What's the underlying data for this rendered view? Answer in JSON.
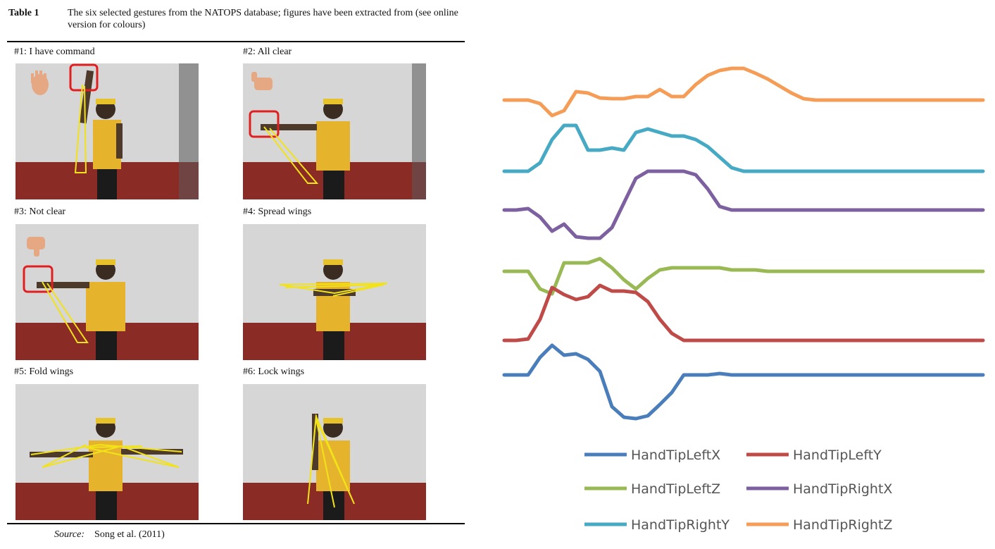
{
  "caption": {
    "label": "Table 1",
    "text": "The six selected gestures from the NATOPS database; figures have been extracted from (see online version for colours)"
  },
  "panels": [
    {
      "label": "#1: I have command",
      "gesture": "i-have-command"
    },
    {
      "label": "#2: All clear",
      "gesture": "all-clear"
    },
    {
      "label": "#3: Not clear",
      "gesture": "not-clear"
    },
    {
      "label": "#4: Spread wings",
      "gesture": "spread-wings"
    },
    {
      "label": "#5: Fold wings",
      "gesture": "fold-wings"
    },
    {
      "label": "#6: Lock wings",
      "gesture": "lock-wings"
    }
  ],
  "source": {
    "label": "Source:",
    "text": "Song et al. (2011)"
  },
  "colors": {
    "HandTipLeftX": "#4a7ebb",
    "HandTipLeftY": "#be4b48",
    "HandTipLeftZ": "#98b954",
    "HandTipRightX": "#7d60a0",
    "HandTipRightY": "#46aac5",
    "HandTipRightZ": "#f59d56"
  },
  "chart_data": {
    "type": "line",
    "title": "",
    "xlabel": "",
    "ylabel": "",
    "grid": false,
    "axes_visible": false,
    "legend_position": "bottom",
    "x": [
      0,
      1,
      2,
      3,
      4,
      5,
      6,
      7,
      8,
      9,
      10,
      11,
      12,
      13,
      14,
      15,
      16,
      17,
      18,
      19,
      20,
      21,
      22,
      23,
      24,
      25,
      26,
      27,
      28,
      29,
      30,
      31,
      32,
      33,
      34,
      35,
      36,
      37,
      38,
      39,
      40
    ],
    "series": [
      {
        "name": "HandTipRightZ",
        "color": "#f59d56",
        "values": [
          0,
          0,
          0,
          -0.05,
          -0.22,
          -0.15,
          0.12,
          0.1,
          0.03,
          0.02,
          0.02,
          0.05,
          0.05,
          0.15,
          0.05,
          0.05,
          0.22,
          0.35,
          0.42,
          0.45,
          0.45,
          0.38,
          0.3,
          0.2,
          0.1,
          0.02,
          0,
          0,
          0,
          0,
          0,
          0,
          0,
          0,
          0,
          0,
          0,
          0,
          0,
          0,
          0
        ]
      },
      {
        "name": "HandTipRightY",
        "color": "#46aac5",
        "values": [
          0,
          0,
          0,
          0.12,
          0.45,
          0.65,
          0.65,
          0.3,
          0.3,
          0.33,
          0.3,
          0.55,
          0.6,
          0.55,
          0.5,
          0.5,
          0.45,
          0.35,
          0.2,
          0.05,
          0,
          0,
          0,
          0,
          0,
          0,
          0,
          0,
          0,
          0,
          0,
          0,
          0,
          0,
          0,
          0,
          0,
          0,
          0,
          0,
          0
        ]
      },
      {
        "name": "HandTipRightX",
        "color": "#7d60a0",
        "values": [
          0,
          0,
          0.02,
          -0.1,
          -0.3,
          -0.2,
          -0.38,
          -0.4,
          -0.4,
          -0.25,
          0.1,
          0.45,
          0.55,
          0.55,
          0.55,
          0.55,
          0.5,
          0.3,
          0.05,
          0,
          0,
          0,
          0,
          0,
          0,
          0,
          0,
          0,
          0,
          0,
          0,
          0,
          0,
          0,
          0,
          0,
          0,
          0,
          0,
          0,
          0
        ]
      },
      {
        "name": "HandTipLeftZ",
        "color": "#98b954",
        "values": [
          0,
          0,
          0,
          -0.25,
          -0.32,
          0.12,
          0.12,
          0.12,
          0.18,
          0.05,
          -0.12,
          -0.25,
          -0.1,
          0.02,
          0.05,
          0.05,
          0.05,
          0.05,
          0.05,
          0.02,
          0.02,
          0.02,
          0,
          0,
          0,
          0,
          0,
          0,
          0,
          0,
          0,
          0,
          0,
          0,
          0,
          0,
          0,
          0,
          0,
          0,
          0
        ]
      },
      {
        "name": "HandTipLeftY",
        "color": "#be4b48",
        "values": [
          0,
          0,
          0.02,
          0.3,
          0.75,
          0.65,
          0.58,
          0.62,
          0.78,
          0.7,
          0.7,
          0.68,
          0.55,
          0.3,
          0.1,
          0,
          0,
          0,
          0,
          0,
          0,
          0,
          0,
          0,
          0,
          0,
          0,
          0,
          0,
          0,
          0,
          0,
          0,
          0,
          0,
          0,
          0,
          0,
          0,
          0,
          0
        ]
      },
      {
        "name": "HandTipLeftX",
        "color": "#4a7ebb",
        "values": [
          0,
          0,
          0,
          0.25,
          0.42,
          0.28,
          0.3,
          0.22,
          0.05,
          -0.45,
          -0.6,
          -0.62,
          -0.58,
          -0.42,
          -0.25,
          0,
          0,
          0,
          0.02,
          0,
          0,
          0,
          0,
          0,
          0,
          0,
          0,
          0,
          0,
          0,
          0,
          0,
          0,
          0,
          0,
          0,
          0,
          0,
          0,
          0,
          0
        ]
      }
    ]
  }
}
